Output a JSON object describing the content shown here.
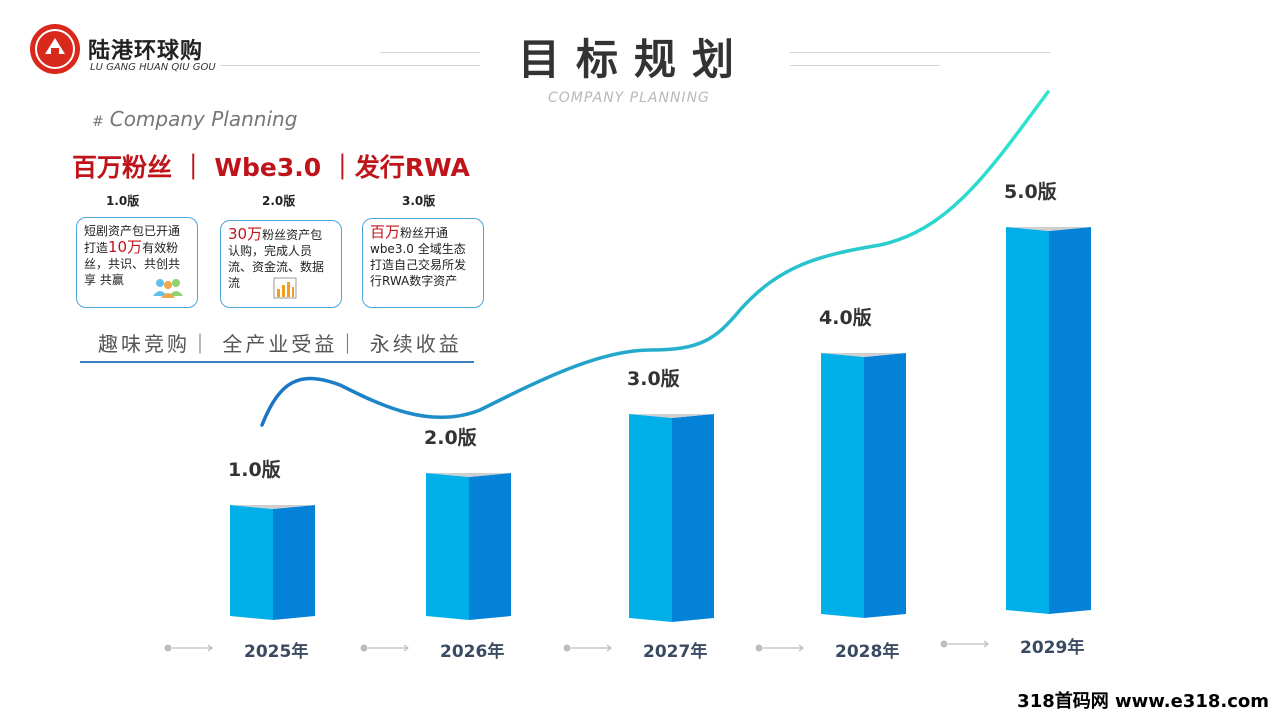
{
  "brand": {
    "name": "陆港环球购",
    "name_en": "LU GANG HUAN QIU GOU"
  },
  "header": {
    "title": "目标规划",
    "subtitle": "COMPANY PLANNING"
  },
  "section": {
    "heading_hash": "#",
    "heading": "Company Planning",
    "headline": "百万粉丝 ｜ Wbe3.0 ｜发行RWA"
  },
  "version_cards": [
    {
      "version": "1.0版",
      "text_a": "短剧资产包已开通打造",
      "highlight": "10万",
      "text_b": "有效粉丝，共识、共创共享 共赢",
      "icon": "people-icon"
    },
    {
      "version": "2.0版",
      "text_a": "",
      "highlight": "30万",
      "text_b": "粉丝资产包认购，完成人员流、资金流、数据流",
      "icon": "bar-chart-icon"
    },
    {
      "version": "3.0版",
      "text_a": "",
      "highlight": "百万",
      "text_b": "粉丝开通wbe3.0 全域生态打造自己交易所发行RWA数字资产",
      "icon": ""
    }
  ],
  "slogan": "趣味竞购｜ 全产业受益｜ 永续收益",
  "chart_data": {
    "type": "bar",
    "categories": [
      "2025年",
      "2026年",
      "2027年",
      "2028年",
      "2029年"
    ],
    "data_labels": [
      "1.0版",
      "2.0版",
      "3.0版",
      "4.0版",
      "5.0版"
    ],
    "values": [
      1,
      2,
      3,
      4,
      5
    ],
    "colors": {
      "front": "#00aee8",
      "side": "#0482d8",
      "top": "#cfcfcf",
      "curve_start": "#1a73c6",
      "curve_end": "#2ee6d0"
    }
  },
  "watermark": "318首码网 www.e318.com"
}
